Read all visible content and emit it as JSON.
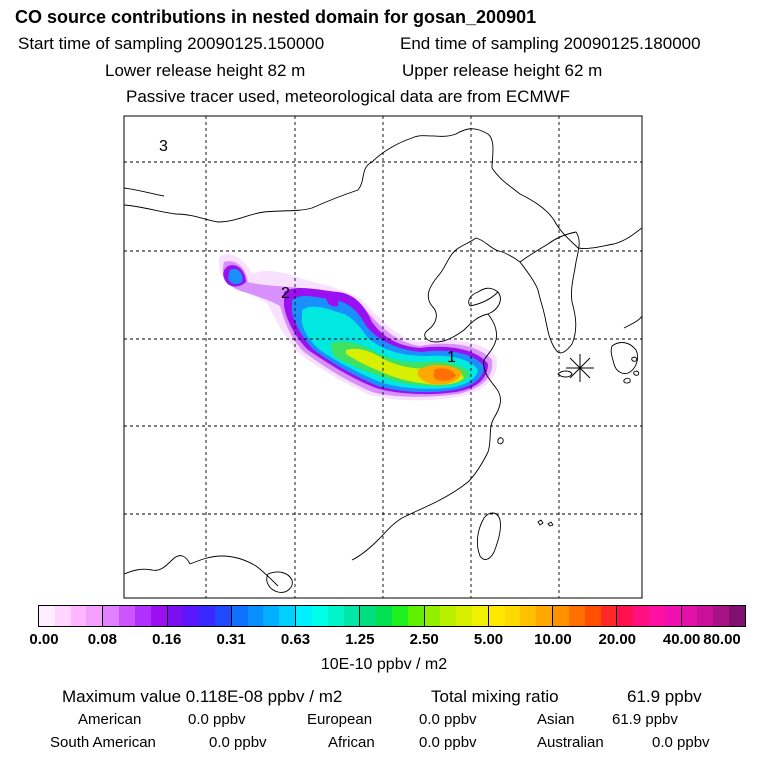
{
  "title": "CO  source contributions in nested domain for gosan_200901",
  "sampling": {
    "start_label": "Start time of sampling 20090125.150000",
    "end_label": "End time of sampling 20090125.180000"
  },
  "release": {
    "lower_label": "Lower release height   82 m",
    "upper_label": "Upper release height   62 m"
  },
  "tracer_note": "Passive tracer used, meteorological data are from ECMWF",
  "chart_data": {
    "type": "heatmap",
    "title": "CO  source contributions in nested domain for gosan_200901",
    "colorbar": {
      "unit": "10E-10 ppbv / m2",
      "tick_labels": [
        "0.00",
        "0.08",
        "0.16",
        "0.31",
        "0.63",
        "1.25",
        "2.50",
        "5.00",
        "10.00",
        "20.00",
        "40.00",
        "80.00"
      ],
      "segment_colors": [
        [
          "#ffeeff",
          "#ffd6ff",
          "#ffb8ff",
          "#f4a0ff"
        ],
        [
          "#e080ff",
          "#cc55ff",
          "#b030ff",
          "#9a10f0"
        ],
        [
          "#7a10f0",
          "#5a18ff",
          "#3a28ff",
          "#2048ff"
        ],
        [
          "#1070ff",
          "#0890ff",
          "#00b0ff",
          "#00d0ff"
        ],
        [
          "#00f0ff",
          "#00ffe8",
          "#00f5c8",
          "#00e8a8"
        ],
        [
          "#00dd80",
          "#00e050",
          "#20f020",
          "#60f000"
        ],
        [
          "#90f000",
          "#b8f000",
          "#d8f000",
          "#f0f000"
        ],
        [
          "#ffe800",
          "#ffd800",
          "#ffc000",
          "#ffa800"
        ],
        [
          "#ff9000",
          "#ff7000",
          "#ff5000",
          "#ff2828"
        ],
        [
          "#ff1050",
          "#ff1080",
          "#ff10a0",
          "#f010b0"
        ],
        [
          "#e010a8",
          "#c81098",
          "#a81088",
          "#801070"
        ]
      ]
    },
    "release_markers": [
      "1",
      "2",
      "3"
    ]
  },
  "summary": {
    "max_label": "Maximum value  0.118E-08 ppbv / m2",
    "total_label": "Total mixing ratio",
    "total_value": "61.9 ppbv",
    "regions": [
      {
        "name": "American",
        "value": "0.0 ppbv"
      },
      {
        "name": "European",
        "value": "0.0 ppbv"
      },
      {
        "name": "Asian",
        "value": "61.9 ppbv"
      },
      {
        "name": "South American",
        "value": "0.0 ppbv"
      },
      {
        "name": "African",
        "value": "0.0 ppbv"
      },
      {
        "name": "Australian",
        "value": "0.0 ppbv"
      }
    ]
  }
}
